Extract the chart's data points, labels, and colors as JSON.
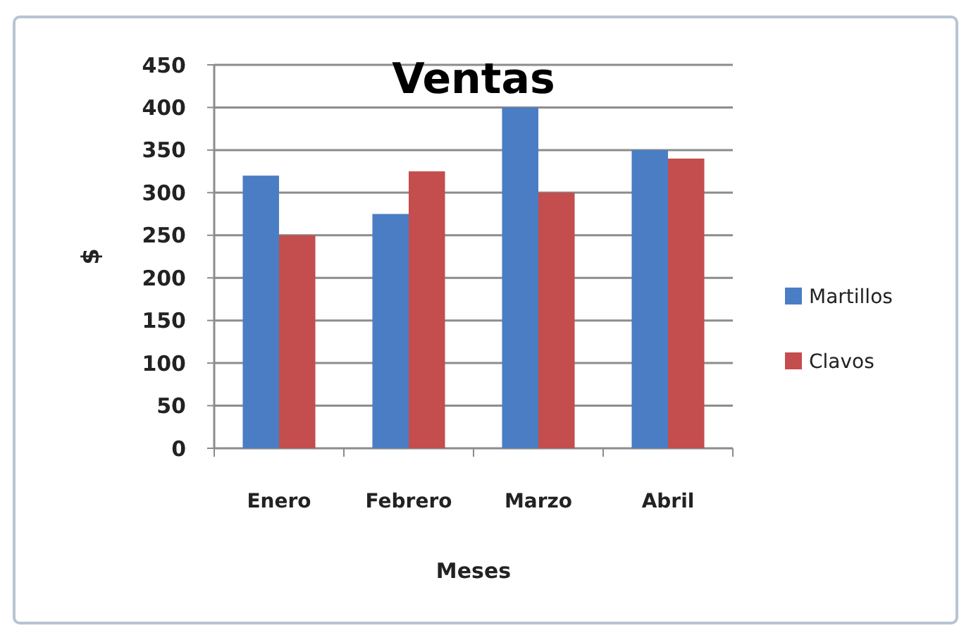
{
  "chart_data": {
    "type": "bar",
    "title": "Ventas",
    "xlabel": "Meses",
    "ylabel": "$",
    "categories": [
      "Enero",
      "Febrero",
      "Marzo",
      "Abril"
    ],
    "series": [
      {
        "name": "Martillos",
        "color": "#4a7dc4",
        "values": [
          320,
          275,
          400,
          350
        ]
      },
      {
        "name": "Clavos",
        "color": "#c44d4d",
        "values": [
          250,
          325,
          300,
          340
        ]
      }
    ],
    "ylim": [
      0,
      450
    ],
    "yticks": [
      0,
      50,
      100,
      150,
      200,
      250,
      300,
      350,
      400,
      450
    ],
    "grid": "y",
    "legend": "right"
  }
}
